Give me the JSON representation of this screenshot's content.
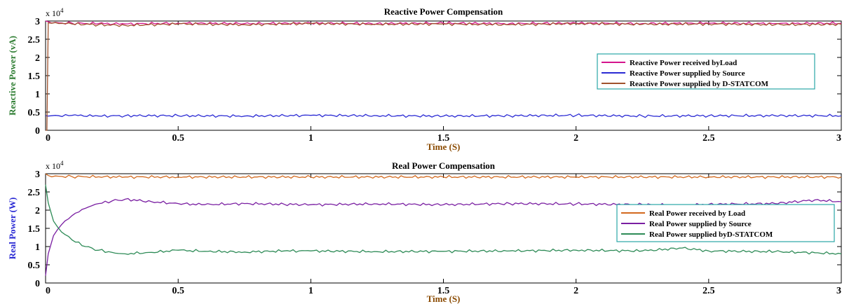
{
  "chart_data": [
    {
      "type": "line",
      "title": "Reactive Power Compensation",
      "xlabel": "Time (S)",
      "ylabel": "Reactive Power (vA)",
      "ylabel_color": "#2e7d32",
      "multiplier": "x 10",
      "multiplier_exp": "4",
      "xlim": [
        0,
        3
      ],
      "ylim": [
        0,
        30000
      ],
      "xticks": [
        "0",
        "0.5",
        "1",
        "1.5",
        "2",
        "2.5",
        "3"
      ],
      "yticks": [
        "0",
        "0.5",
        "1",
        "1.5",
        "2",
        "2.5",
        "3"
      ],
      "xtick_values": [
        0,
        0.5,
        1,
        1.5,
        2,
        2.5,
        3
      ],
      "ytick_values": [
        0,
        5000,
        10000,
        15000,
        20000,
        25000,
        30000
      ],
      "legend_position": "right",
      "series": [
        {
          "name": "Reactive Power received byLoad",
          "color": "#d4148c",
          "x": [
            0,
            0.01,
            0.05,
            0.1,
            0.2,
            0.3,
            0.5,
            0.75,
            1,
            1.25,
            1.5,
            1.75,
            2,
            2.25,
            2.5,
            2.75,
            3
          ],
          "y": [
            30000,
            29800,
            29500,
            29400,
            29300,
            29200,
            29400,
            29300,
            29400,
            29300,
            29400,
            29300,
            29400,
            29300,
            29400,
            29300,
            29400
          ]
        },
        {
          "name": "Reactive  Power supplied by Source",
          "color": "#2b2bd4",
          "x": [
            0,
            0.01,
            0.05,
            0.1,
            0.2,
            0.3,
            0.5,
            0.75,
            1,
            1.25,
            1.5,
            1.75,
            2,
            2.25,
            2.5,
            2.75,
            3
          ],
          "y": [
            4000,
            3900,
            4000,
            4100,
            3900,
            4000,
            4000,
            3900,
            4100,
            4000,
            3900,
            4000,
            4100,
            3900,
            4000,
            4000,
            4000
          ]
        },
        {
          "name": "Reactive Power supplied by D-STATCOM",
          "color": "#a0522d",
          "x": [
            0,
            0.005,
            0.01,
            0.05,
            0.1,
            0.2,
            0.3,
            0.5,
            0.75,
            1,
            1.25,
            1.5,
            1.75,
            2,
            2.25,
            2.5,
            2.75,
            3
          ],
          "y": [
            0,
            0,
            29500,
            29300,
            29200,
            29000,
            28800,
            29200,
            29000,
            29300,
            29100,
            29200,
            29000,
            29300,
            29100,
            29200,
            29000,
            29100
          ]
        }
      ]
    },
    {
      "type": "line",
      "title": "Real Power Compensation",
      "xlabel": "Time (S)",
      "ylabel": "Real Power (W)",
      "ylabel_color": "#2b2bd4",
      "multiplier": "x 10",
      "multiplier_exp": "4",
      "xlim": [
        0,
        3
      ],
      "ylim": [
        0,
        30000
      ],
      "xticks": [
        "0",
        "0.5",
        "1",
        "1.5",
        "2",
        "2.5",
        "3"
      ],
      "yticks": [
        "0",
        "0.5",
        "1",
        "1.5",
        "2",
        "2.5",
        "3"
      ],
      "xtick_values": [
        0,
        0.5,
        1,
        1.5,
        2,
        2.5,
        3
      ],
      "ytick_values": [
        0,
        5000,
        10000,
        15000,
        20000,
        25000,
        30000
      ],
      "legend_position": "right",
      "series": [
        {
          "name": "Real Power received by Load",
          "color": "#d2691e",
          "x": [
            0,
            0.01,
            0.05,
            0.1,
            0.3,
            0.5,
            1,
            1.5,
            2,
            2.5,
            3
          ],
          "y": [
            30000,
            29500,
            29300,
            29200,
            29100,
            29100,
            29100,
            29100,
            29100,
            29100,
            29100
          ]
        },
        {
          "name": "Real Power supplied by Source",
          "color": "#7a1fa2",
          "x": [
            0,
            0.01,
            0.03,
            0.06,
            0.1,
            0.15,
            0.2,
            0.25,
            0.3,
            0.4,
            0.5,
            0.6,
            0.75,
            0.9,
            1,
            1.25,
            1.5,
            1.75,
            2,
            2.25,
            2.4,
            2.5,
            2.75,
            2.9,
            3
          ],
          "y": [
            2000,
            8000,
            13000,
            16000,
            18500,
            20500,
            21800,
            22500,
            23000,
            22300,
            21800,
            21500,
            21800,
            21600,
            21500,
            21700,
            21500,
            21800,
            21700,
            21500,
            21300,
            21600,
            21800,
            22800,
            22300
          ]
        },
        {
          "name": "Real Power supplied byD-STATCOM",
          "color": "#2e8b57",
          "x": [
            0,
            0.01,
            0.03,
            0.06,
            0.1,
            0.15,
            0.2,
            0.25,
            0.3,
            0.4,
            0.5,
            0.6,
            0.75,
            0.9,
            1,
            1.25,
            1.5,
            1.75,
            2,
            2.25,
            2.4,
            2.5,
            2.75,
            2.9,
            3
          ],
          "y": [
            27000,
            22000,
            17000,
            14000,
            11800,
            10000,
            9000,
            8400,
            8000,
            8400,
            9000,
            8700,
            8500,
            8800,
            8800,
            8600,
            8700,
            8800,
            9000,
            8800,
            9600,
            8800,
            8600,
            8300,
            8000
          ]
        }
      ]
    }
  ]
}
